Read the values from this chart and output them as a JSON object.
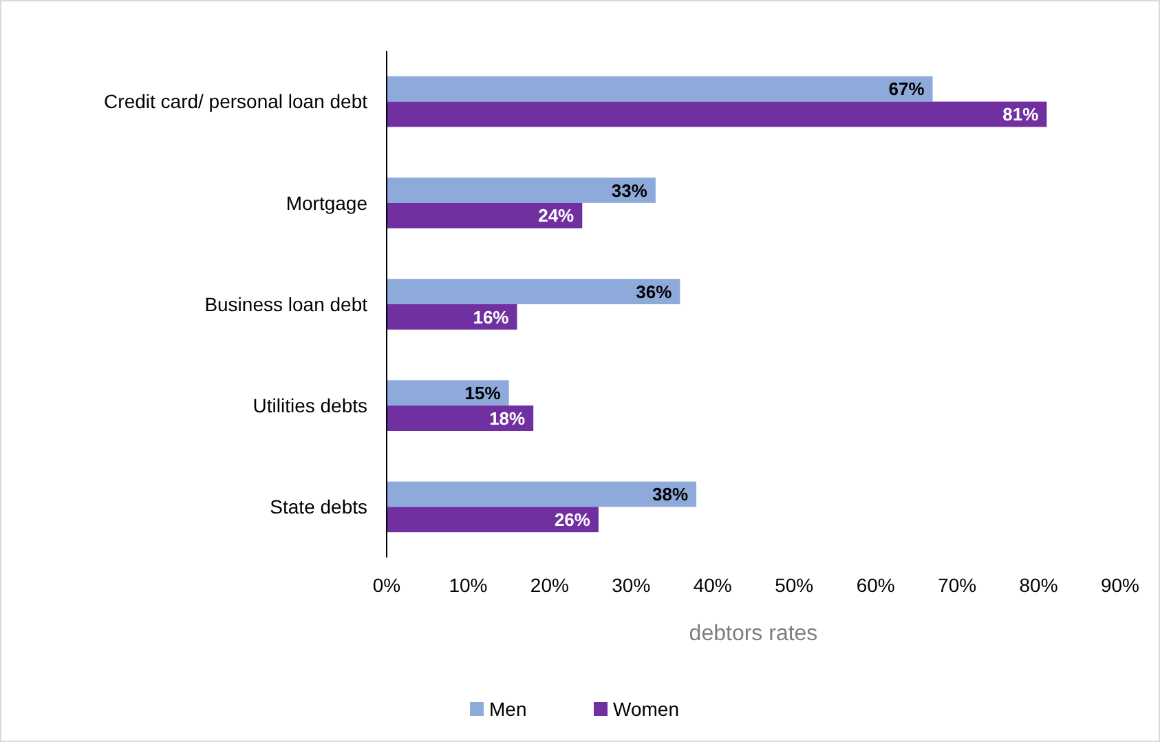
{
  "chart_data": {
    "type": "bar",
    "orientation": "horizontal",
    "xlabel": "debtors rates",
    "categories": [
      "Credit card/ personal loan debt",
      "Mortgage",
      "Business loan debt",
      "Utilities debts",
      "State debts"
    ],
    "series": [
      {
        "name": "Men",
        "color": "#8eaadb",
        "values": [
          67,
          33,
          36,
          15,
          38
        ],
        "value_labels": [
          "67%",
          "33%",
          "36%",
          "15%",
          "38%"
        ]
      },
      {
        "name": "Women",
        "color": "#7030a0",
        "values": [
          81,
          24,
          16,
          18,
          26
        ],
        "value_labels": [
          "81%",
          "24%",
          "16%",
          "18%",
          "26%"
        ]
      }
    ],
    "xlim": [
      0,
      90
    ],
    "xticks": [
      {
        "value": 0,
        "label": "0%"
      },
      {
        "value": 10,
        "label": "10%"
      },
      {
        "value": 20,
        "label": "20%"
      },
      {
        "value": 30,
        "label": "30%"
      },
      {
        "value": 40,
        "label": "40%"
      },
      {
        "value": 50,
        "label": "50%"
      },
      {
        "value": 60,
        "label": "60%"
      },
      {
        "value": 70,
        "label": "70%"
      },
      {
        "value": 80,
        "label": "80%"
      },
      {
        "value": 90,
        "label": "90%"
      }
    ],
    "grid": false,
    "legend": "bottom"
  }
}
